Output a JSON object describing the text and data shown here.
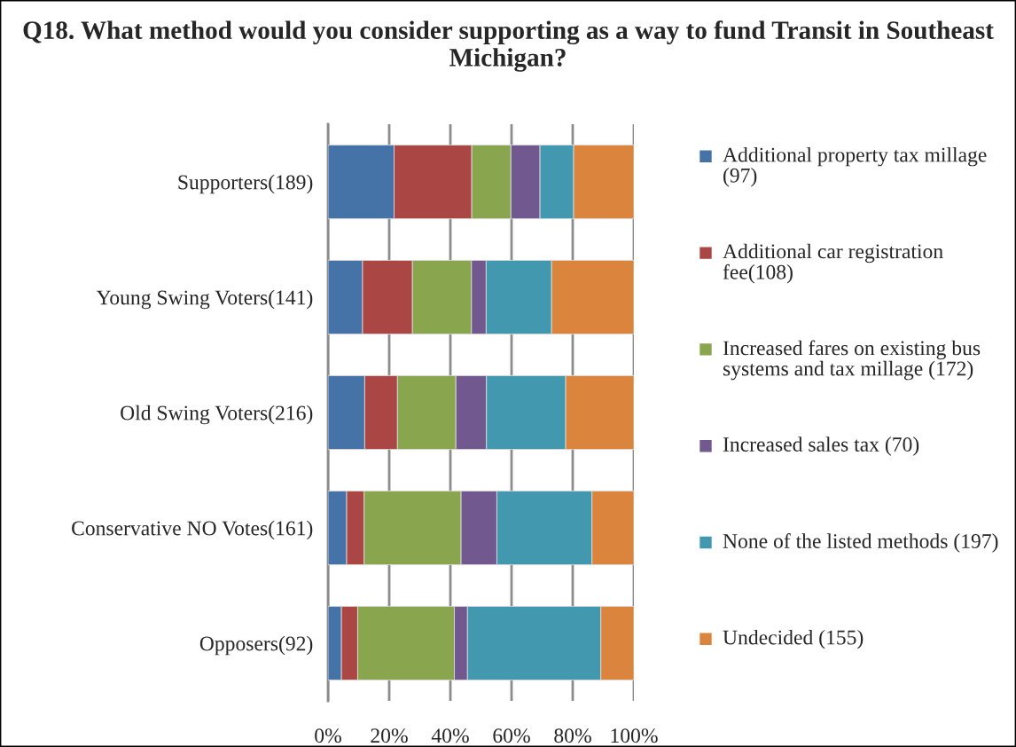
{
  "chart_data": {
    "type": "bar",
    "orientation": "horizontal",
    "stacked": true,
    "title": "Q18. What method would you consider supporting as a way to fund Transit in Southeast Michigan?",
    "categories": [
      "Supporters(189)",
      "Young Swing Voters(141)",
      "Old Swing Voters(216)",
      "Conservative NO Votes(161)",
      "Opposers(92)"
    ],
    "series": [
      {
        "name": "Additional property tax millage (97)",
        "color": "#4572a7",
        "values": [
          21.6,
          11.3,
          12.0,
          6.1,
          4.4
        ]
      },
      {
        "name": "Additional car registration fee(108)",
        "color": "#aa4643",
        "values": [
          25.4,
          16.3,
          10.7,
          5.7,
          5.3
        ]
      },
      {
        "name": "Increased fares on existing bus systems and tax millage (172)",
        "color": "#89a54e",
        "values": [
          12.8,
          19.3,
          19.1,
          31.7,
          31.6
        ]
      },
      {
        "name": "Increased sales tax (70)",
        "color": "#71588f",
        "values": [
          9.5,
          4.8,
          10.0,
          11.7,
          4.3
        ]
      },
      {
        "name": "None of the listed methods (197)",
        "color": "#4198af",
        "values": [
          11.0,
          21.4,
          25.9,
          31.1,
          43.6
        ]
      },
      {
        "name": "Undecided (155)",
        "color": "#db843d",
        "values": [
          19.7,
          26.9,
          22.3,
          13.7,
          10.8
        ]
      }
    ],
    "xlim": [
      0,
      100
    ],
    "xticks": [
      {
        "value": 0,
        "label": "0%"
      },
      {
        "value": 20,
        "label": "20%"
      },
      {
        "value": 40,
        "label": "40%"
      },
      {
        "value": 60,
        "label": "60%"
      },
      {
        "value": 80,
        "label": "80%"
      },
      {
        "value": 100,
        "label": "100%"
      }
    ],
    "grid": "x",
    "legend": "right"
  }
}
